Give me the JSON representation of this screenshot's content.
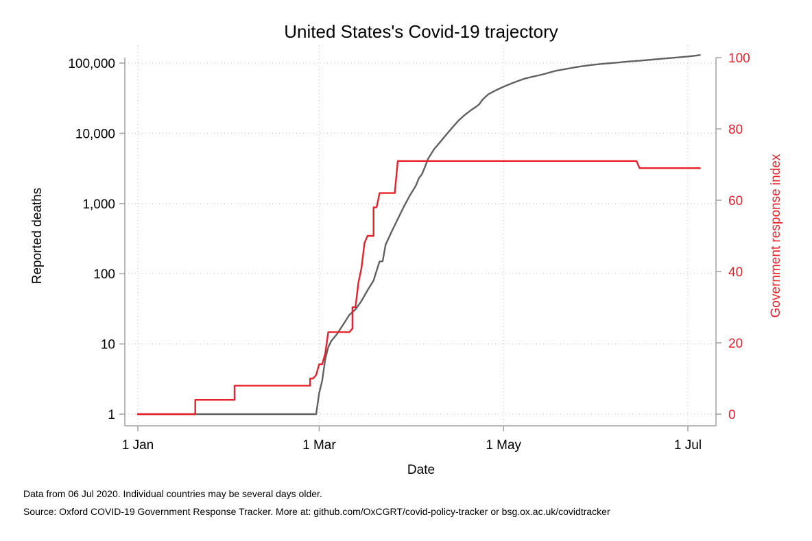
{
  "chart_data": {
    "type": "line",
    "title": "United States's Covid-19 trajectory",
    "xlabel": "Date",
    "ylabel": "Reported deaths",
    "y2label": "Government response index",
    "x_axis": {
      "ticks": [
        {
          "label": "1 Jan",
          "day": 0
        },
        {
          "label": "1 Mar",
          "day": 60
        },
        {
          "label": "1 May",
          "day": 121
        },
        {
          "label": "1 Jul",
          "day": 182
        }
      ],
      "range_days": [
        0,
        187
      ]
    },
    "y_axis": {
      "scale": "log",
      "range": [
        1,
        130000
      ],
      "ticks": [
        {
          "label": "1",
          "value": 1
        },
        {
          "label": "10",
          "value": 10
        },
        {
          "label": "100",
          "value": 100
        },
        {
          "label": "1,000",
          "value": 1000
        },
        {
          "label": "10,000",
          "value": 10000
        },
        {
          "label": "100,000",
          "value": 100000
        }
      ]
    },
    "y2_axis": {
      "scale": "linear",
      "range": [
        0,
        100
      ],
      "ticks": [
        0,
        20,
        40,
        60,
        80,
        100
      ],
      "color": "#e8202a"
    },
    "grid": true,
    "series": [
      {
        "name": "",
        "axis": "left",
        "color": "#606060",
        "points": [
          [
            0,
            1
          ],
          [
            59,
            1
          ],
          [
            60,
            2
          ],
          [
            61,
            3
          ],
          [
            62,
            6
          ],
          [
            63,
            9
          ],
          [
            64,
            11
          ],
          [
            66,
            14
          ],
          [
            68,
            19
          ],
          [
            70,
            26
          ],
          [
            72,
            31
          ],
          [
            74,
            41
          ],
          [
            76,
            58
          ],
          [
            78,
            80
          ],
          [
            79,
            110
          ],
          [
            80,
            150
          ],
          [
            81,
            150
          ],
          [
            82,
            260
          ],
          [
            84,
            400
          ],
          [
            86,
            600
          ],
          [
            88,
            900
          ],
          [
            90,
            1300
          ],
          [
            92,
            1800
          ],
          [
            93,
            2300
          ],
          [
            94,
            2600
          ],
          [
            95,
            3300
          ],
          [
            96,
            4300
          ],
          [
            98,
            5900
          ],
          [
            100,
            7500
          ],
          [
            102,
            9500
          ],
          [
            104,
            12000
          ],
          [
            106,
            15000
          ],
          [
            108,
            18000
          ],
          [
            110,
            21000
          ],
          [
            112,
            24000
          ],
          [
            113,
            26000
          ],
          [
            114,
            30000
          ],
          [
            115,
            33000
          ],
          [
            116,
            36000
          ],
          [
            118,
            40000
          ],
          [
            120,
            44000
          ],
          [
            122,
            48000
          ],
          [
            124,
            52000
          ],
          [
            126,
            56000
          ],
          [
            128,
            60000
          ],
          [
            130,
            63000
          ],
          [
            132,
            66000
          ],
          [
            134,
            69000
          ],
          [
            136,
            73000
          ],
          [
            138,
            77000
          ],
          [
            142,
            83000
          ],
          [
            146,
            89000
          ],
          [
            150,
            94000
          ],
          [
            154,
            98000
          ],
          [
            158,
            101000
          ],
          [
            162,
            105000
          ],
          [
            166,
            108000
          ],
          [
            170,
            112000
          ],
          [
            174,
            116000
          ],
          [
            178,
            120000
          ],
          [
            182,
            124000
          ],
          [
            184,
            127000
          ],
          [
            186,
            130000
          ]
        ]
      },
      {
        "name": "",
        "axis": "right",
        "color": "#e8202a",
        "points": [
          [
            0,
            0
          ],
          [
            19,
            0
          ],
          [
            19,
            4
          ],
          [
            32,
            4
          ],
          [
            32,
            8
          ],
          [
            57,
            8
          ],
          [
            57,
            10
          ],
          [
            58,
            10
          ],
          [
            59,
            11
          ],
          [
            60,
            14
          ],
          [
            61,
            14
          ],
          [
            62,
            17
          ],
          [
            63,
            23
          ],
          [
            70,
            23
          ],
          [
            71,
            24
          ],
          [
            71,
            30
          ],
          [
            72,
            30
          ],
          [
            73,
            37
          ],
          [
            74,
            41
          ],
          [
            75,
            48
          ],
          [
            76,
            50
          ],
          [
            77,
            50
          ],
          [
            78,
            50
          ],
          [
            78,
            58
          ],
          [
            79,
            58
          ],
          [
            80,
            62
          ],
          [
            84,
            62
          ],
          [
            85,
            62
          ],
          [
            86,
            71
          ],
          [
            165,
            71
          ],
          [
            166,
            69
          ],
          [
            186,
            69
          ]
        ]
      }
    ]
  },
  "notes": {
    "line1": "Data from 06 Jul 2020. Individual countries may be several days older.",
    "line2": "Source: Oxford COVID-19 Government Response Tracker. More at: github.com/OxCGRT/covid-policy-tracker or bsg.ox.ac.uk/covidtracker"
  }
}
